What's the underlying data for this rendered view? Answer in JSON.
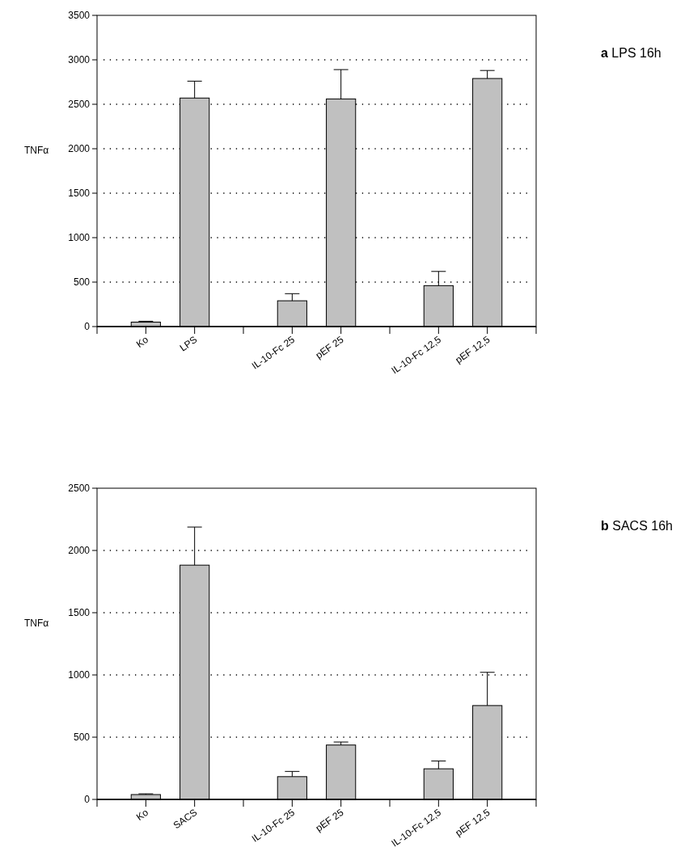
{
  "chart_data": [
    {
      "type": "bar",
      "annotations": [
        "a LPS 16h"
      ],
      "ylabel": "TNFα",
      "categories": [
        "Ko",
        "LPS",
        null,
        "IL-10-Fc 25",
        "pEF 25",
        null,
        "IL-10-Fc 12,5",
        "pEF 12,5"
      ],
      "values": [
        50,
        2570,
        null,
        290,
        2560,
        null,
        460,
        2790
      ],
      "color": "#c0c0c0",
      "errors": [
        [
          50,
          60
        ],
        [
          2570,
          2760
        ],
        null,
        [
          290,
          370
        ],
        [
          2560,
          2890
        ],
        null,
        [
          460,
          620
        ],
        [
          2790,
          2880
        ]
      ],
      "ylim": [
        0,
        3500
      ],
      "yticks": [
        0,
        500,
        1000,
        1500,
        2000,
        2500,
        3000,
        3500
      ],
      "grid": "y"
    },
    {
      "type": "bar",
      "annotations": [
        "b SACS 16h"
      ],
      "ylabel": "TNFα",
      "categories": [
        "Ko",
        "SACS",
        null,
        "IL-10-Fc 25",
        "pEF 25",
        null,
        "IL-10-Fc 12,5",
        "pEF 12,5"
      ],
      "values": [
        39,
        1882,
        null,
        183,
        437,
        null,
        246,
        754
      ],
      "color": "#c0c0c0",
      "errors": [
        [
          39,
          45
        ],
        [
          1882,
          2188
        ],
        null,
        [
          183,
          225
        ],
        [
          437,
          461
        ],
        null,
        [
          246,
          309
        ],
        [
          754,
          1021
        ]
      ],
      "ylim": [
        0,
        2500
      ],
      "yticks": [
        0,
        500,
        1000,
        1500,
        2000,
        2500
      ],
      "grid": "y"
    }
  ]
}
